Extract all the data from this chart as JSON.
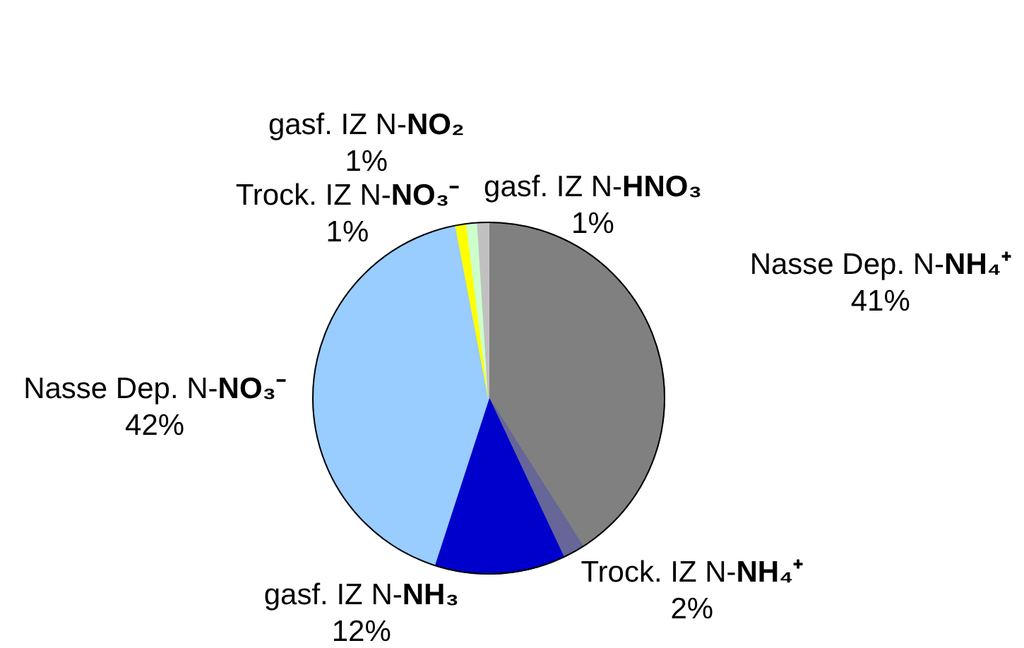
{
  "chart_data": {
    "type": "pie",
    "categories": [
      "Nasse Dep. N-NH₄⁺",
      "Trock. IZ N-NH₄⁺",
      "gasf. IZ N-NH₃",
      "Nasse Dep. N-NO₃⁻",
      "Trock. IZ N-NO₃⁻",
      "gasf. IZ N-NO₂",
      "gasf. IZ N-HNO₃"
    ],
    "values": [
      41,
      2,
      12,
      42,
      1,
      1,
      1
    ],
    "colors": [
      "#808080",
      "#666699",
      "#0000cc",
      "#99ccff",
      "#ffff00",
      "#ccffcc",
      "#c0c0c0"
    ],
    "value_labels": [
      "41%",
      "2%",
      "12%",
      "42%",
      "1%",
      "1%",
      "1%"
    ]
  }
}
